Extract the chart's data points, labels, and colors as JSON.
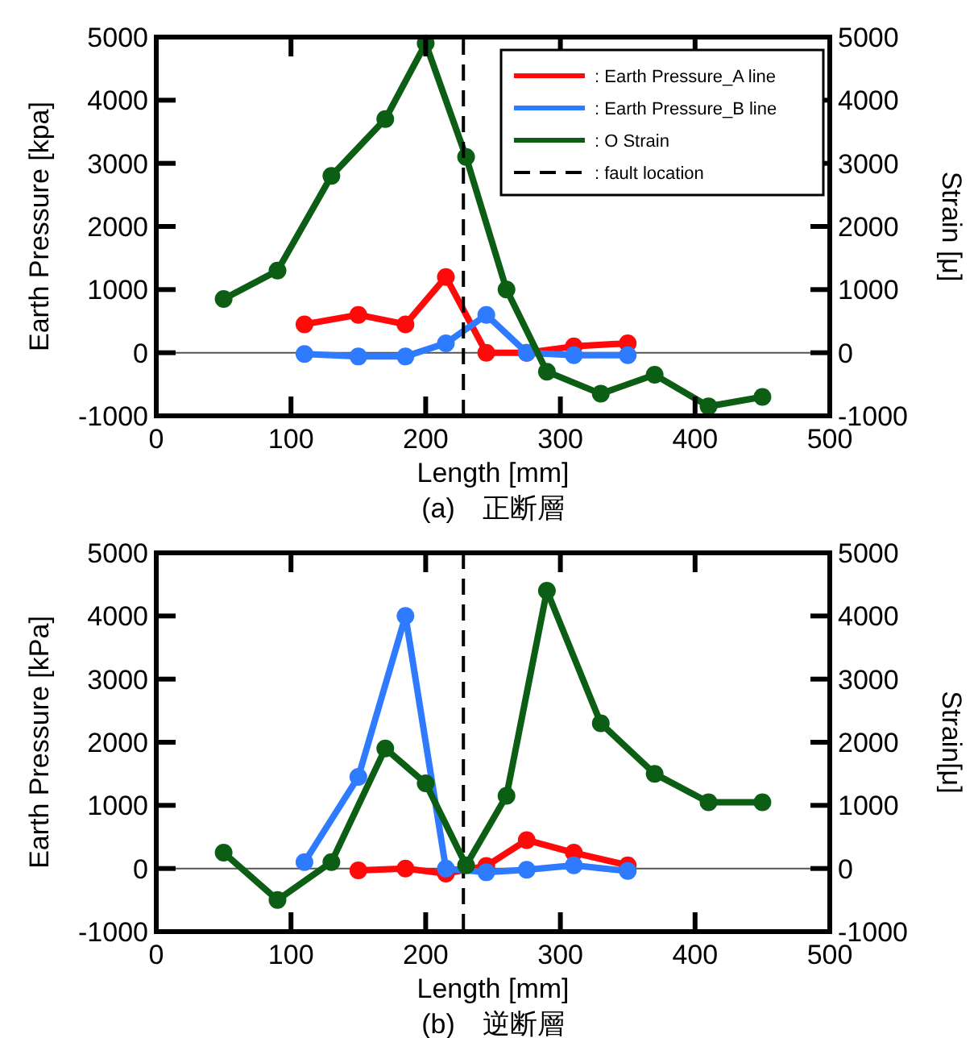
{
  "chart_data": [
    {
      "type": "line",
      "title": "(a)　正断層",
      "xlabel": "Length [mm]",
      "ylabel": "Earth Pressure [kpa]",
      "y2label": "Strain [μ]",
      "xlim": [
        0,
        500
      ],
      "xticks": [
        0,
        100,
        200,
        300,
        400,
        500
      ],
      "ylim": [
        -1000,
        5000
      ],
      "yticks": [
        -1000,
        0,
        1000,
        2000,
        3000,
        4000,
        5000
      ],
      "y2lim": [
        -1000,
        5000
      ],
      "y2ticks": [
        -1000,
        0,
        1000,
        2000,
        3000,
        4000,
        5000
      ],
      "grid": false,
      "legend": "top right",
      "marker": "circle",
      "line_style": "solid",
      "series": [
        {
          "name": ": Earth Pressure_A line",
          "color": "#ff0a0a",
          "x": [
            110,
            150,
            185,
            215,
            245,
            275,
            310,
            350
          ],
          "values": [
            450,
            600,
            450,
            1200,
            0,
            0,
            100,
            150
          ]
        },
        {
          "name": ": Earth Pressure_B line",
          "color": "#2f7bff",
          "x": [
            110,
            150,
            185,
            215,
            245,
            275,
            310,
            350
          ],
          "values": [
            -20,
            -60,
            -60,
            150,
            600,
            0,
            -40,
            -40
          ]
        },
        {
          "name": ": O Strain",
          "color": "#0b5e14",
          "x": [
            50,
            90,
            130,
            170,
            200,
            230,
            260,
            290,
            330,
            370,
            410,
            450
          ],
          "values": [
            850,
            1300,
            2800,
            3700,
            4900,
            3100,
            1000,
            -300,
            -650,
            -350,
            -850,
            -700
          ]
        },
        {
          "name": ": fault location",
          "color": "#000000",
          "line_style": "dashed",
          "marker": "none",
          "x": [
            228,
            228
          ],
          "values": [
            -1000,
            5000
          ]
        }
      ],
      "ref_lines": [
        {
          "axis": "y",
          "value": 0,
          "color": "#555555",
          "line_style": "solid"
        }
      ]
    },
    {
      "type": "line",
      "title": "(b)　逆断層",
      "xlabel": "Length [mm]",
      "ylabel": "Earth Pressure [kPa]",
      "y2label": "Strain[μ]",
      "xlim": [
        0,
        500
      ],
      "xticks": [
        0,
        100,
        200,
        300,
        400,
        500
      ],
      "ylim": [
        -1000,
        5000
      ],
      "yticks": [
        -1000,
        0,
        1000,
        2000,
        3000,
        4000,
        5000
      ],
      "y2lim": [
        -1000,
        5000
      ],
      "y2ticks": [
        -1000,
        0,
        1000,
        2000,
        3000,
        4000,
        5000
      ],
      "grid": false,
      "marker": "circle",
      "line_style": "solid",
      "series": [
        {
          "color": "#ff0a0a",
          "x": [
            150,
            185,
            215,
            245,
            275,
            310,
            350
          ],
          "values": [
            -30,
            0,
            -80,
            40,
            450,
            250,
            50
          ]
        },
        {
          "color": "#2f7bff",
          "x": [
            110,
            150,
            185,
            215,
            245,
            275,
            310,
            350
          ],
          "values": [
            100,
            1450,
            4000,
            0,
            -60,
            -20,
            50,
            -40
          ]
        },
        {
          "color": "#0b5e14",
          "x": [
            50,
            90,
            130,
            170,
            200,
            230,
            260,
            290,
            330,
            370,
            410,
            450
          ],
          "values": [
            250,
            -500,
            100,
            1900,
            1350,
            50,
            1150,
            4400,
            2300,
            1500,
            1050,
            1050
          ]
        }
      ],
      "ref_lines": [
        {
          "axis": "y",
          "value": 0,
          "color": "#555555",
          "line_style": "solid"
        },
        {
          "axis": "x",
          "value": 228,
          "color": "#000000",
          "line_style": "dashed"
        }
      ]
    }
  ]
}
